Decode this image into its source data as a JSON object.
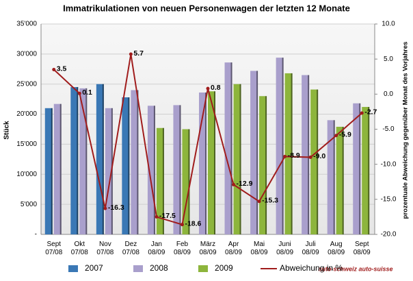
{
  "chart_data": {
    "type": "bar-line",
    "title": "Immatrikulationen von neuen Personenwagen der letzten 12 Monate",
    "y_label": "Stück",
    "y2_label": "prozentuale Abweichung gegenüber Monat des Vorjahres",
    "categories": [
      "Sept\n07/08",
      "Okt\n07/08",
      "Nov\n07/08",
      "Dez\n07/08",
      "Jan\n08/09",
      "Feb\n08/09",
      "März\n08/09",
      "Apr\n08/09",
      "Mai\n08/09",
      "Juni\n08/09",
      "Juli\n08/09",
      "Aug\n08/09",
      "Sept\n08/09"
    ],
    "series": [
      {
        "name": "2007",
        "color": "#3a78b5",
        "values": [
          21000,
          24500,
          25000,
          22800,
          null,
          null,
          null,
          null,
          null,
          null,
          null,
          null,
          null
        ]
      },
      {
        "name": "2008",
        "color": "#a99fcc",
        "values": [
          21700,
          24300,
          21000,
          24000,
          21400,
          21500,
          23600,
          28600,
          27200,
          29400,
          26500,
          19000,
          21800
        ]
      },
      {
        "name": "2009",
        "color": "#8db53c",
        "values": [
          null,
          null,
          null,
          null,
          17700,
          17500,
          23800,
          25000,
          23000,
          26800,
          24100,
          17900,
          21200
        ]
      },
      {
        "name": "Abweichung in %",
        "color": "#a01c1c",
        "type": "line",
        "axis": "y2",
        "values": [
          3.5,
          0.1,
          -16.3,
          5.7,
          -17.5,
          -18.6,
          0.8,
          -12.9,
          -15.3,
          -8.9,
          -9.0,
          -5.9,
          -2.7
        ],
        "value_labels": [
          "3.5",
          "0.1",
          "-16.3",
          "5.7",
          "-17.5",
          "-18.6",
          "0.8",
          "-12.9",
          "-15.3",
          "-8.9",
          "-9.0",
          "-5.9",
          "-2.7"
        ]
      }
    ],
    "ylim": [
      0,
      35000
    ],
    "yticks": [
      {
        "value": 0,
        "label": "-"
      },
      {
        "value": 5000,
        "label": "5'000"
      },
      {
        "value": 10000,
        "label": "10'000"
      },
      {
        "value": 15000,
        "label": "15'000"
      },
      {
        "value": 20000,
        "label": "20'000"
      },
      {
        "value": 25000,
        "label": "25'000"
      },
      {
        "value": 30000,
        "label": "30'000"
      },
      {
        "value": 35000,
        "label": "35'000"
      }
    ],
    "y2lim": [
      -20,
      10
    ],
    "y2ticks": [
      {
        "value": -20,
        "label": "-20.0"
      },
      {
        "value": -15,
        "label": "-15.0"
      },
      {
        "value": -10,
        "label": "-10.0"
      },
      {
        "value": -5,
        "label": "-5.0"
      },
      {
        "value": 0,
        "label": "0.0"
      },
      {
        "value": 5,
        "label": "5.0"
      },
      {
        "value": 10,
        "label": "10.0"
      }
    ],
    "grid": true,
    "legend": "bottom"
  },
  "logo": "auto-schweiz auto-suisse"
}
